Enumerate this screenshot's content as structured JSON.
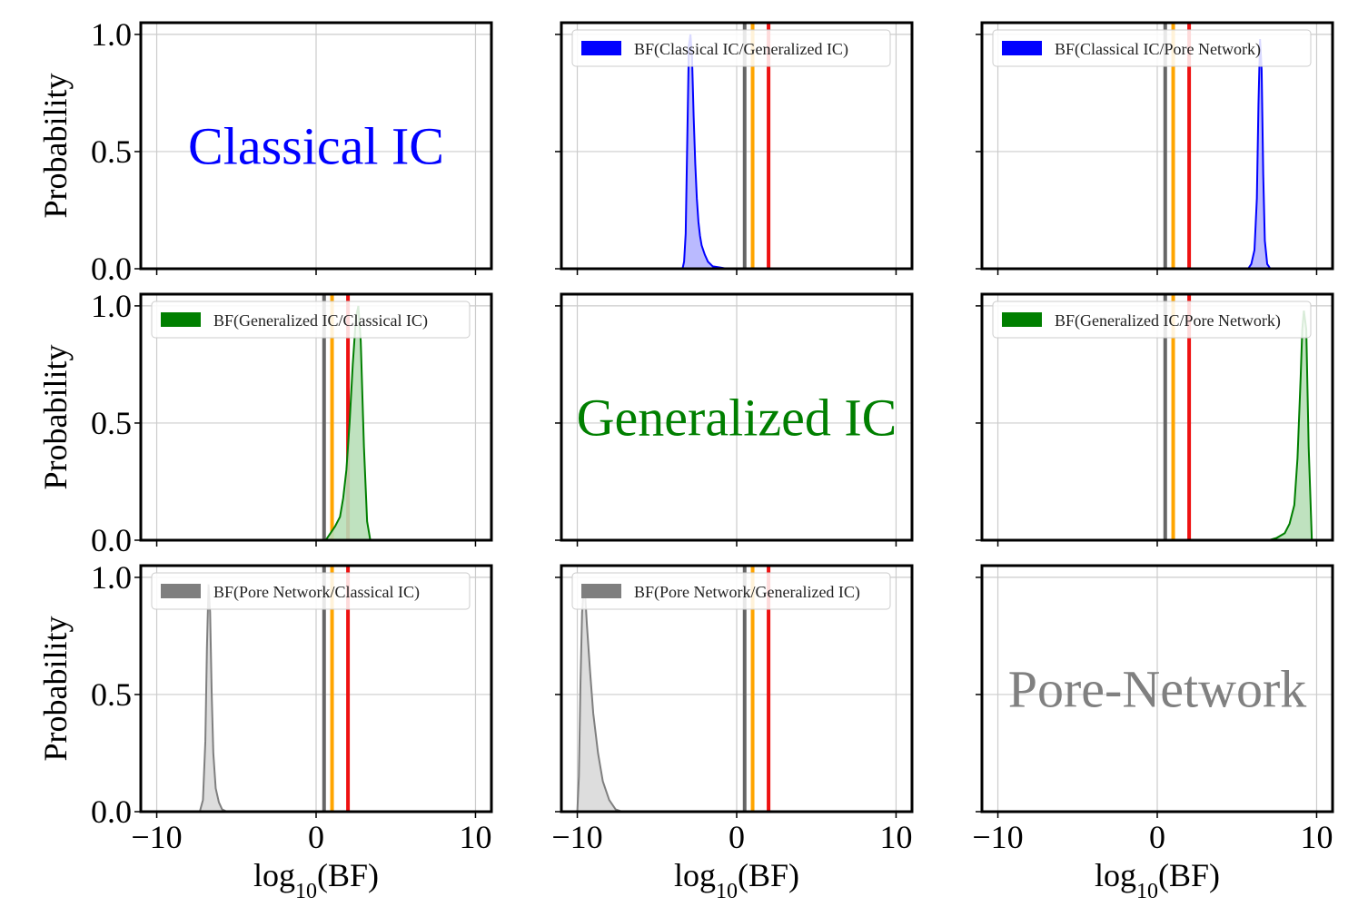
{
  "figure": {
    "ylabel": "Probability",
    "xlabel_base": "log",
    "xlabel_sub": "10",
    "xlabel_tail": "(BF)"
  },
  "chart_data": {
    "type": "area",
    "layout": "3x3 grid",
    "xlim": [
      -11,
      11
    ],
    "ylim": [
      0,
      1.05
    ],
    "x_ticks": [
      -10,
      0,
      10
    ],
    "x_tick_labels": [
      "−10",
      "0",
      "10"
    ],
    "y_ticks": [
      0.0,
      0.5,
      1.0
    ],
    "y_tick_labels": [
      "0.0",
      "0.5",
      "1.0"
    ],
    "grid": true,
    "legend_placement": "top",
    "threshold_lines": [
      {
        "x": 0.5,
        "color": "#666666"
      },
      {
        "x": 1.0,
        "color": "#ffa500"
      },
      {
        "x": 2.0,
        "color": "#ee1111"
      }
    ],
    "panels": [
      {
        "row": 0,
        "col": 0,
        "label": "Classical IC",
        "label_color": "#0000ff"
      },
      {
        "row": 0,
        "col": 1,
        "legend": "BF(Classical IC/Generalized IC)",
        "color": "#0000ff",
        "fill": "#b3b3ff",
        "x": [
          -3.4,
          -3.3,
          -3.2,
          -3.1,
          -3.0,
          -2.9,
          -2.8,
          -2.7,
          -2.6,
          -2.5,
          -2.4,
          -2.3,
          -2.2,
          -2.0,
          -1.8,
          -1.5,
          -1.0,
          -0.6
        ],
        "y": [
          0.0,
          0.03,
          0.15,
          0.55,
          0.95,
          1.0,
          0.9,
          0.65,
          0.45,
          0.3,
          0.2,
          0.14,
          0.1,
          0.06,
          0.03,
          0.01,
          0.005,
          0.0
        ]
      },
      {
        "row": 0,
        "col": 2,
        "legend": "BF(Classical IC/Pore Network)",
        "color": "#0000ff",
        "fill": "#b3b3ff",
        "x": [
          5.7,
          5.9,
          6.1,
          6.25,
          6.35,
          6.45,
          6.55,
          6.65,
          6.75,
          6.9,
          7.1
        ],
        "y": [
          0.0,
          0.02,
          0.08,
          0.3,
          0.7,
          0.98,
          0.85,
          0.4,
          0.12,
          0.02,
          0.0
        ]
      },
      {
        "row": 1,
        "col": 0,
        "legend": "BF(Generalized IC/Classical IC)",
        "color": "#007f00",
        "fill": "#b8dfb8",
        "x": [
          0.6,
          0.9,
          1.2,
          1.5,
          1.7,
          1.9,
          2.1,
          2.3,
          2.5,
          2.65,
          2.8,
          3.0,
          3.2,
          3.4
        ],
        "y": [
          0.0,
          0.03,
          0.06,
          0.1,
          0.18,
          0.3,
          0.5,
          0.75,
          0.95,
          1.0,
          0.85,
          0.4,
          0.08,
          0.0
        ]
      },
      {
        "row": 1,
        "col": 1,
        "label": "Generalized IC",
        "label_color": "#007f00"
      },
      {
        "row": 1,
        "col": 2,
        "legend": "BF(Generalized IC/Pore Network)",
        "color": "#007f00",
        "fill": "#b8dfb8",
        "x": [
          7.0,
          7.5,
          8.0,
          8.3,
          8.6,
          8.8,
          9.0,
          9.1,
          9.2,
          9.35,
          9.5,
          9.7
        ],
        "y": [
          0.0,
          0.01,
          0.03,
          0.07,
          0.15,
          0.35,
          0.7,
          0.9,
          0.98,
          0.9,
          0.4,
          0.0
        ]
      },
      {
        "row": 2,
        "col": 0,
        "legend": "BF(Pore Network/Classical IC)",
        "color": "#7f7f7f",
        "fill": "#d9d9d9",
        "x": [
          -7.3,
          -7.1,
          -6.95,
          -6.85,
          -6.75,
          -6.65,
          -6.55,
          -6.45,
          -6.3,
          -6.1,
          -5.9,
          -5.6
        ],
        "y": [
          0.0,
          0.05,
          0.3,
          0.7,
          0.97,
          0.85,
          0.5,
          0.25,
          0.1,
          0.04,
          0.01,
          0.0
        ]
      },
      {
        "row": 2,
        "col": 1,
        "legend": "BF(Pore Network/Generalized IC)",
        "color": "#7f7f7f",
        "fill": "#d9d9d9",
        "x": [
          -10.0,
          -9.9,
          -9.8,
          -9.7,
          -9.6,
          -9.5,
          -9.4,
          -9.2,
          -9.0,
          -8.7,
          -8.4,
          -8.0,
          -7.6,
          -7.2
        ],
        "y": [
          0.0,
          0.15,
          0.55,
          0.85,
          0.95,
          0.92,
          0.8,
          0.6,
          0.42,
          0.25,
          0.13,
          0.05,
          0.01,
          0.0
        ]
      },
      {
        "row": 2,
        "col": 2,
        "label": "Pore-Network",
        "label_color": "#808080"
      }
    ]
  }
}
